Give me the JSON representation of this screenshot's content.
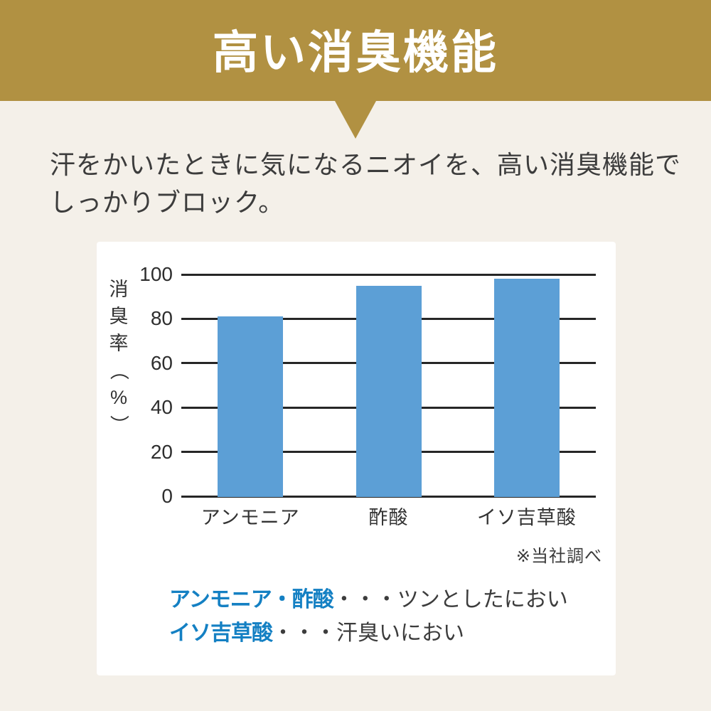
{
  "page": {
    "background": "#F4F0E9"
  },
  "banner": {
    "title": "高い消臭機能",
    "color": "#B19142",
    "text_color": "#FFFFFF"
  },
  "intro": {
    "line1": "汗をかいたときに気になるニオイを、高い消臭機能で",
    "line2": "しっかりブロック。"
  },
  "chart_data": {
    "type": "bar",
    "title": "",
    "categories": [
      "アンモニア",
      "酢酸",
      "イソ吉草酸"
    ],
    "values": [
      81,
      95,
      98
    ],
    "ylabel": "消臭率（%）",
    "xlabel": "",
    "yticks": [
      0,
      20,
      40,
      60,
      80,
      100
    ],
    "ylim": [
      0,
      100
    ],
    "grid": true,
    "legend_position": "none",
    "bar_color": "#5C9FD6",
    "grid_color": "#262626",
    "note": "※当社調べ"
  },
  "legend": {
    "accent_color": "#1480C3",
    "lines": [
      {
        "term": "アンモニア・酢酸",
        "desc": "・・・ツンとしたにおい"
      },
      {
        "term": "イソ吉草酸",
        "desc": "・・・汗臭いにおい"
      }
    ]
  }
}
